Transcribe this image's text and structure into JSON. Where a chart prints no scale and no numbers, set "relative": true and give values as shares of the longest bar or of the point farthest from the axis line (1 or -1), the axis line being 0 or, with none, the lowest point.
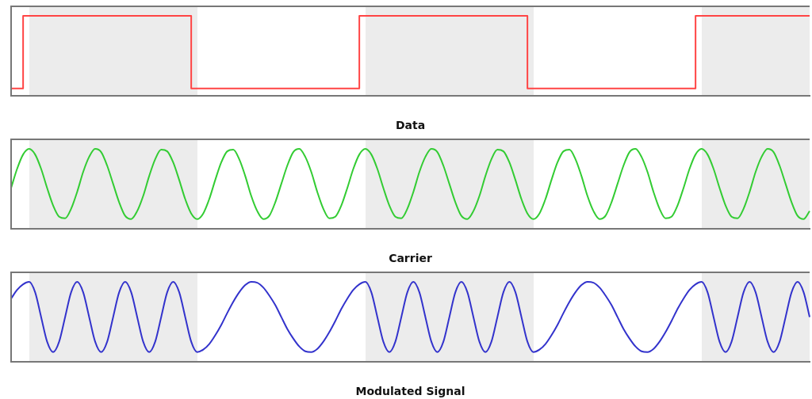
{
  "chart_data": [
    {
      "type": "step",
      "xlabel": "Data",
      "relative": true,
      "categories": [
        null,
        null,
        null,
        null,
        null,
        null,
        null,
        null,
        null,
        null,
        null,
        null,
        null,
        null,
        null,
        null,
        null,
        null,
        null,
        null,
        null,
        null,
        null,
        null,
        null,
        null,
        null,
        null,
        null,
        null,
        null,
        null,
        null,
        null,
        null,
        null,
        null,
        null,
        null,
        null,
        null,
        null,
        null,
        null,
        null,
        null,
        null,
        null,
        null,
        null,
        null,
        null,
        null,
        null,
        null,
        null,
        null,
        null,
        null,
        null,
        null,
        null,
        null,
        null,
        null,
        null,
        null,
        null,
        null,
        null,
        null,
        null,
        null,
        null,
        null,
        null,
        null,
        null,
        null,
        null,
        null,
        null,
        null,
        null,
        null,
        null,
        null,
        null,
        null,
        null,
        null,
        null,
        null,
        null,
        null,
        null,
        null,
        null,
        null,
        null,
        null,
        null,
        null,
        null,
        null,
        null,
        null,
        null,
        null,
        null,
        null,
        null,
        null,
        null,
        null,
        null,
        null,
        null,
        null,
        null,
        null,
        null,
        null,
        null,
        null,
        null,
        null,
        null,
        null,
        null,
        null,
        null,
        null,
        null
      ],
      "series": [
        {
          "color": "#ff4444",
          "values": [
            0.09,
            0.09,
            0.09,
            1,
            1,
            1,
            1,
            1,
            1,
            1,
            1,
            1,
            1,
            1,
            1,
            1,
            1,
            1,
            1,
            1,
            1,
            1,
            1,
            1,
            1,
            1,
            1,
            1,
            1,
            1,
            1,
            0.09,
            0.09,
            0.09,
            0.09,
            0.09,
            0.09,
            0.09,
            0.09,
            0.09,
            0.09,
            0.09,
            0.09,
            0.09,
            0.09,
            0.09,
            0.09,
            0.09,
            0.09,
            0.09,
            0.09,
            0.09,
            0.09,
            0.09,
            0.09,
            0.09,
            0.09,
            0.09,
            0.09,
            1,
            1,
            1,
            1,
            1,
            1,
            1,
            1,
            1,
            1,
            1,
            1,
            1,
            1,
            1,
            1,
            1,
            1,
            1,
            1,
            1,
            1,
            1,
            1,
            1,
            1,
            1,
            1,
            0.09,
            0.09,
            0.09,
            0.09,
            0.09,
            0.09,
            0.09,
            0.09,
            0.09,
            0.09,
            0.09,
            0.09,
            0.09,
            0.09,
            0.09,
            0.09,
            0.09,
            0.09,
            0.09,
            0.09,
            0.09,
            0.09,
            0.09,
            0.09,
            0.09,
            0.09,
            0.09,
            0.09,
            1,
            1,
            1,
            1,
            1,
            1,
            1,
            1,
            1,
            1,
            1,
            1,
            1,
            1,
            1,
            1,
            1,
            1,
            1
          ]
        }
      ]
    },
    {
      "type": "line",
      "xlabel": "Carrier",
      "relative": true,
      "categories": [
        null,
        null,
        null,
        null,
        null,
        null,
        null,
        null,
        null,
        null,
        null,
        null,
        null,
        null,
        null,
        null,
        null,
        null,
        null,
        null,
        null,
        null,
        null,
        null,
        null,
        null,
        null,
        null,
        null,
        null,
        null,
        null,
        null,
        null,
        null,
        null,
        null,
        null,
        null,
        null,
        null,
        null,
        null,
        null,
        null,
        null,
        null,
        null,
        null,
        null,
        null,
        null,
        null,
        null,
        null,
        null,
        null,
        null,
        null,
        null,
        null,
        null,
        null,
        null,
        null,
        null,
        null,
        null,
        null,
        null,
        null,
        null,
        null,
        null,
        null,
        null,
        null,
        null,
        null,
        null,
        null,
        null,
        null,
        null,
        null,
        null,
        null,
        null,
        null,
        null,
        null,
        null,
        null,
        null,
        null,
        null,
        null,
        null,
        null,
        null,
        null,
        null,
        null,
        null,
        null,
        null,
        null,
        null,
        null,
        null,
        null,
        null,
        null,
        null,
        null,
        null,
        null,
        null,
        null,
        null,
        null,
        null,
        null,
        null,
        null,
        null,
        null,
        null,
        null,
        null,
        null,
        null,
        null,
        null
      ],
      "series": [
        {
          "color": "#33cc33",
          "values": [
            0.51,
            0.75,
            0.93,
            1.0,
            0.93,
            0.75,
            0.51,
            0.29,
            0.15,
            0.13,
            0.25,
            0.46,
            0.71,
            0.9,
            1.0,
            0.96,
            0.79,
            0.56,
            0.33,
            0.16,
            0.12,
            0.22,
            0.41,
            0.66,
            0.87,
            0.99,
            0.97,
            0.83,
            0.61,
            0.37,
            0.19,
            0.12,
            0.19,
            0.37,
            0.61,
            0.83,
            0.97,
            0.99,
            0.87,
            0.66,
            0.41,
            0.22,
            0.12,
            0.16,
            0.33,
            0.56,
            0.79,
            0.96,
            1.0,
            0.9,
            0.71,
            0.46,
            0.25,
            0.13,
            0.15,
            0.29,
            0.51,
            0.75,
            0.93,
            1.0,
            0.93,
            0.75,
            0.51,
            0.29,
            0.15,
            0.13,
            0.25,
            0.46,
            0.71,
            0.9,
            1.0,
            0.96,
            0.79,
            0.56,
            0.33,
            0.16,
            0.12,
            0.22,
            0.41,
            0.66,
            0.87,
            0.99,
            0.97,
            0.83,
            0.61,
            0.37,
            0.19,
            0.12,
            0.19,
            0.37,
            0.61,
            0.83,
            0.97,
            0.99,
            0.87,
            0.66,
            0.41,
            0.22,
            0.12,
            0.16,
            0.33,
            0.56,
            0.79,
            0.96,
            1.0,
            0.9,
            0.71,
            0.46,
            0.25,
            0.13,
            0.15,
            0.29,
            0.51,
            0.75,
            0.93,
            1.0,
            0.93,
            0.75,
            0.51,
            0.29,
            0.15,
            0.13,
            0.25,
            0.46,
            0.71,
            0.9,
            1.0,
            0.96,
            0.79,
            0.56,
            0.33,
            0.16,
            0.12,
            0.22
          ]
        }
      ]
    },
    {
      "type": "line",
      "xlabel": "Modulated Signal",
      "relative": true,
      "categories": [
        null,
        null,
        null,
        null,
        null,
        null,
        null,
        null,
        null,
        null,
        null,
        null,
        null,
        null,
        null,
        null,
        null,
        null,
        null,
        null,
        null,
        null,
        null,
        null,
        null,
        null,
        null,
        null,
        null,
        null,
        null,
        null,
        null,
        null,
        null,
        null,
        null,
        null,
        null,
        null,
        null,
        null,
        null,
        null,
        null,
        null,
        null,
        null,
        null,
        null,
        null,
        null,
        null,
        null,
        null,
        null,
        null,
        null,
        null,
        null,
        null,
        null,
        null,
        null,
        null,
        null,
        null,
        null,
        null,
        null,
        null,
        null,
        null,
        null,
        null,
        null,
        null,
        null,
        null,
        null,
        null,
        null,
        null,
        null,
        null,
        null,
        null,
        null,
        null,
        null,
        null,
        null,
        null,
        null,
        null,
        null,
        null,
        null,
        null,
        null,
        null,
        null,
        null,
        null,
        null,
        null,
        null,
        null,
        null,
        null,
        null,
        null,
        null,
        null,
        null,
        null,
        null,
        null,
        null,
        null,
        null,
        null,
        null,
        null,
        null,
        null,
        null,
        null,
        null,
        null,
        null,
        null,
        null,
        null
      ],
      "series": [
        {
          "color": "#3333cc",
          "values": [
            0.79,
            0.9,
            0.97,
            1.0,
            0.87,
            0.56,
            0.25,
            0.12,
            0.25,
            0.56,
            0.87,
            1.0,
            0.87,
            0.56,
            0.25,
            0.12,
            0.25,
            0.56,
            0.87,
            1.0,
            0.87,
            0.56,
            0.25,
            0.12,
            0.25,
            0.56,
            0.87,
            1.0,
            0.87,
            0.56,
            0.25,
            0.12,
            0.15,
            0.22,
            0.33,
            0.46,
            0.61,
            0.75,
            0.87,
            0.96,
            1.0,
            0.99,
            0.93,
            0.83,
            0.71,
            0.56,
            0.41,
            0.29,
            0.19,
            0.13,
            0.12,
            0.16,
            0.25,
            0.37,
            0.51,
            0.66,
            0.79,
            0.9,
            0.97,
            1.0,
            0.87,
            0.56,
            0.25,
            0.12,
            0.25,
            0.56,
            0.87,
            1.0,
            0.87,
            0.56,
            0.25,
            0.12,
            0.25,
            0.56,
            0.87,
            1.0,
            0.87,
            0.56,
            0.25,
            0.12,
            0.25,
            0.56,
            0.87,
            1.0,
            0.87,
            0.56,
            0.25,
            0.12,
            0.15,
            0.22,
            0.33,
            0.46,
            0.61,
            0.75,
            0.87,
            0.96,
            1.0,
            0.99,
            0.93,
            0.83,
            0.71,
            0.56,
            0.41,
            0.29,
            0.19,
            0.13,
            0.12,
            0.16,
            0.25,
            0.37,
            0.51,
            0.66,
            0.79,
            0.9,
            0.97,
            1.0,
            0.87,
            0.56,
            0.25,
            0.12,
            0.25,
            0.56,
            0.87,
            1.0,
            0.87,
            0.56,
            0.25,
            0.12,
            0.25,
            0.56,
            0.87,
            1.0,
            0.87,
            0.56
          ]
        }
      ]
    }
  ]
}
